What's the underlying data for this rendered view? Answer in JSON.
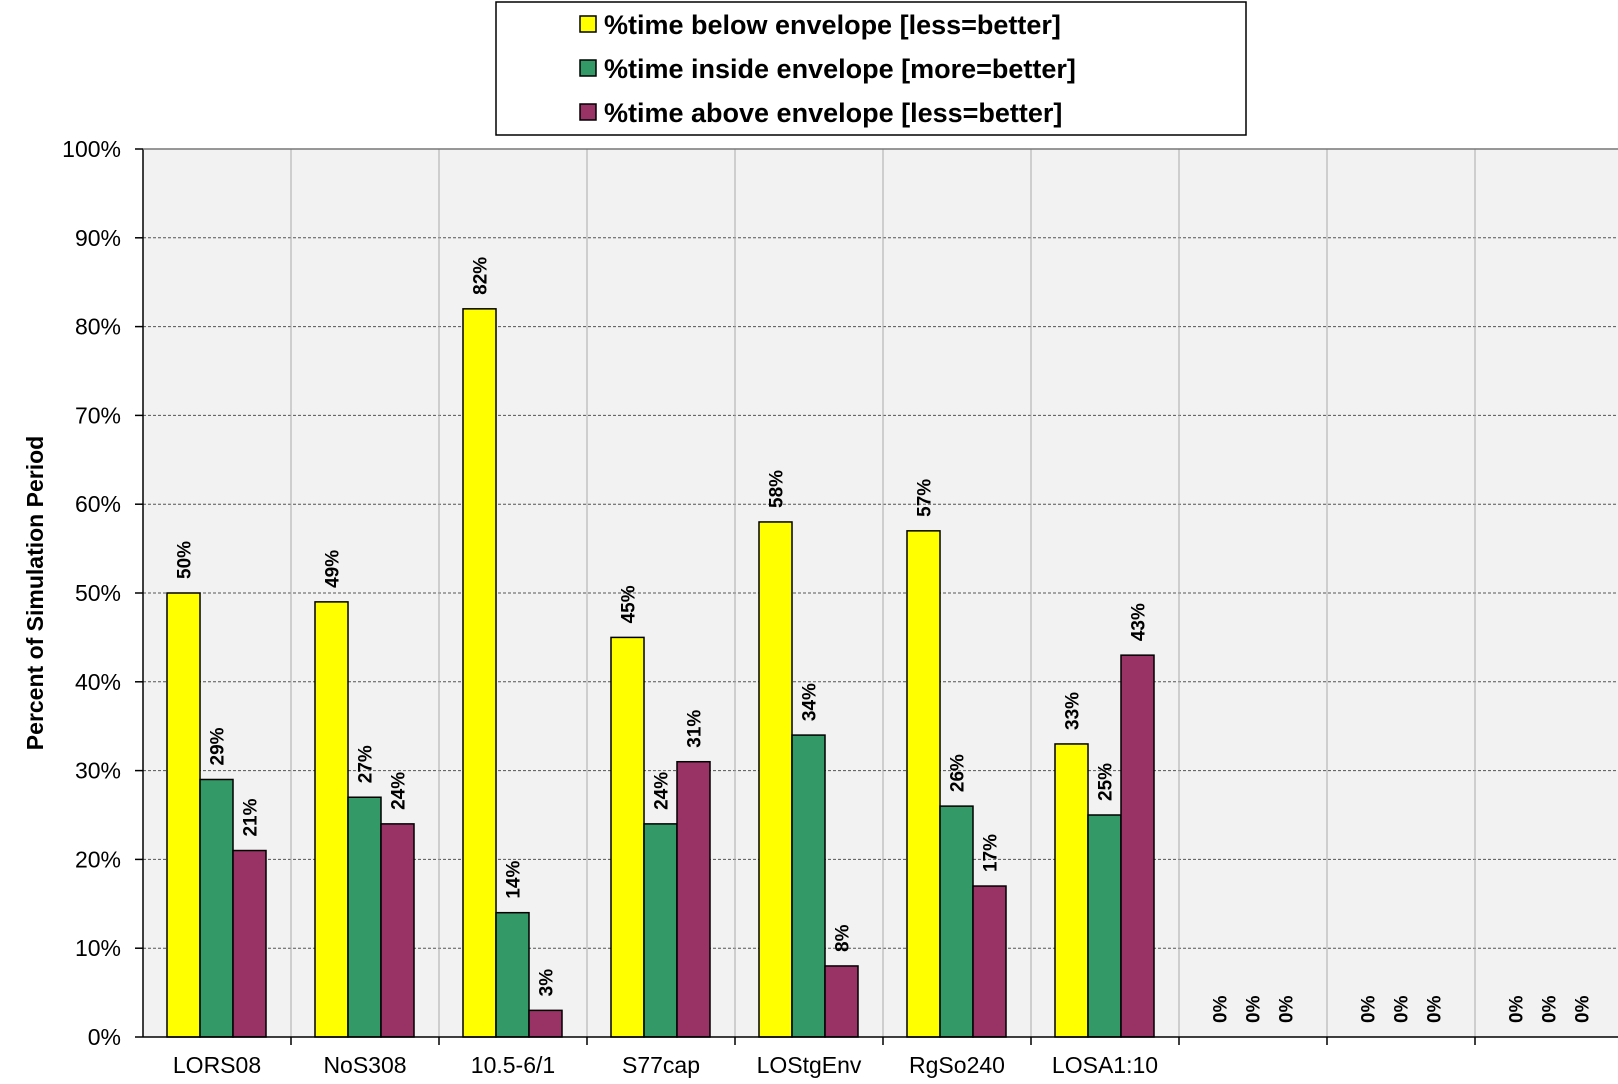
{
  "chart_data": {
    "type": "bar",
    "title": "",
    "xlabel": "",
    "ylabel": "Percent of Simulation Period",
    "ylim": [
      0,
      100
    ],
    "y_ticks": [
      "0%",
      "10%",
      "20%",
      "30%",
      "40%",
      "50%",
      "60%",
      "70%",
      "80%",
      "90%",
      "100%"
    ],
    "grid": true,
    "legend_position": "top-center",
    "categories": [
      "LORS08",
      "NoS308",
      "10.5-6/1",
      "S77cap",
      "LOStgEnv",
      "RgSo240",
      "LOSA1:10",
      "",
      "",
      ""
    ],
    "series": [
      {
        "name": "%time below envelope [less=better]",
        "color": "#ffff00",
        "values": [
          50,
          49,
          82,
          45,
          58,
          57,
          33,
          0,
          0,
          0
        ],
        "labels": [
          "50%",
          "49%",
          "82%",
          "45%",
          "58%",
          "57%",
          "33%",
          "0%",
          "0%",
          "0%"
        ]
      },
      {
        "name": "%time inside envelope [more=better]",
        "color": "#339966",
        "values": [
          29,
          27,
          14,
          24,
          34,
          26,
          25,
          0,
          0,
          0
        ],
        "labels": [
          "29%",
          "27%",
          "14%",
          "24%",
          "34%",
          "26%",
          "25%",
          "0%",
          "0%",
          "0%"
        ]
      },
      {
        "name": "%time above envelope [less=better]",
        "color": "#993366",
        "values": [
          21,
          24,
          3,
          31,
          8,
          17,
          43,
          0,
          0,
          0
        ],
        "labels": [
          "21%",
          "24%",
          "3%",
          "31%",
          "8%",
          "17%",
          "43%",
          "0%",
          "0%",
          "0%"
        ]
      }
    ]
  }
}
